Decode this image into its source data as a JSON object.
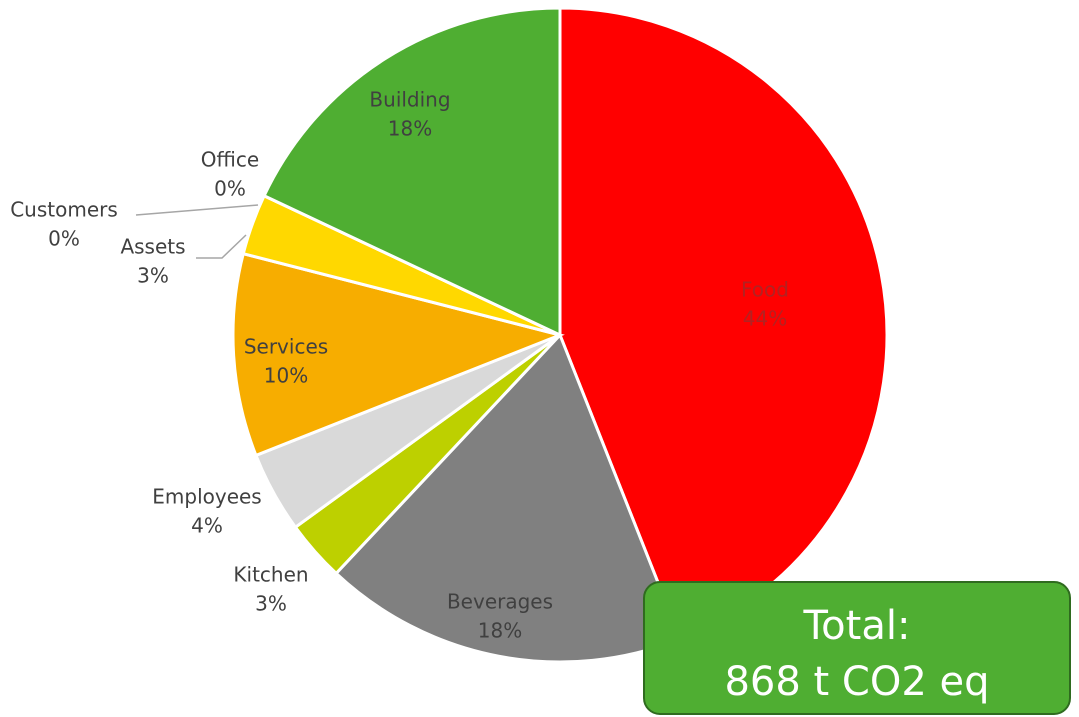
{
  "chart_data": {
    "type": "pie",
    "categories": [
      "Food",
      "Beverages",
      "Kitchen",
      "Employees",
      "Services",
      "Assets",
      "Customers",
      "Office",
      "Building"
    ],
    "values": [
      44,
      18,
      3,
      4,
      10,
      3,
      0,
      0,
      18
    ],
    "value_labels": [
      "44%",
      "18%",
      "3%",
      "4%",
      "10%",
      "3%",
      "0%",
      "0%",
      "18%"
    ],
    "colors": [
      "#ff0000",
      "#808080",
      "#bdd000",
      "#d9d9d9",
      "#f7ad00",
      "#ffd800",
      "#dcdcdc",
      "#1f6f7f",
      "#4fae32"
    ],
    "annotation": [
      "Total:",
      "868 t CO2 eq"
    ]
  }
}
